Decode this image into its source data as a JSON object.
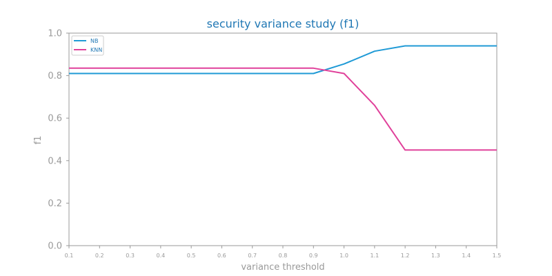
{
  "chart_data": {
    "type": "line",
    "title": "security variance study (f1)",
    "xlabel": "variance threshold",
    "ylabel": "f1",
    "x": [
      0.1,
      0.2,
      0.3,
      0.4,
      0.5,
      0.6,
      0.7,
      0.8,
      0.9,
      1.0,
      1.1,
      1.2,
      1.3,
      1.4,
      1.5
    ],
    "xlim": [
      0.1,
      1.5
    ],
    "ylim": [
      0.0,
      1.0
    ],
    "xticks": [
      "0.1",
      "0.2",
      "0.3",
      "0.4",
      "0.5",
      "0.6",
      "0.7",
      "0.8",
      "0.9",
      "1.0",
      "1.1",
      "1.2",
      "1.3",
      "1.4",
      "1.5"
    ],
    "yticks": [
      "0.0",
      "0.2",
      "0.4",
      "0.6",
      "0.8",
      "1.0"
    ],
    "grid": false,
    "legend_position": "top-left",
    "series": [
      {
        "name": "NB",
        "color": "#1f9ad6",
        "values": [
          0.81,
          0.81,
          0.81,
          0.81,
          0.81,
          0.81,
          0.81,
          0.81,
          0.81,
          0.855,
          0.915,
          0.94,
          0.94,
          0.94,
          0.94
        ]
      },
      {
        "name": "KNN",
        "color": "#e0409a",
        "values": [
          0.835,
          0.835,
          0.835,
          0.835,
          0.835,
          0.835,
          0.835,
          0.835,
          0.835,
          0.81,
          0.66,
          0.45,
          0.45,
          0.45,
          0.45
        ]
      }
    ],
    "colors": {
      "title": "#1f77b4",
      "axis": "#999999",
      "tick_text": "#999999",
      "legend_text": "#1f77b4",
      "legend_border": "#cccccc"
    }
  }
}
